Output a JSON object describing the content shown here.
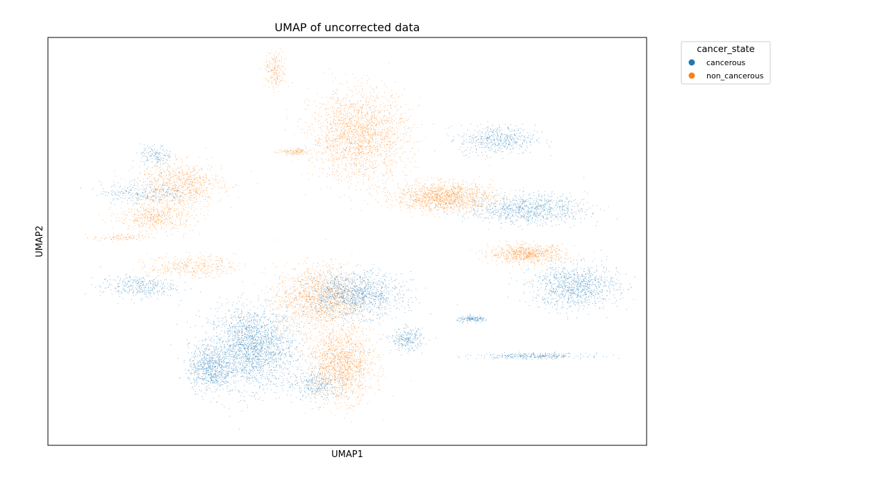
{
  "chart_data": {
    "type": "scatter",
    "title": "UMAP of uncorrected data",
    "xlabel": "UMAP1",
    "ylabel": "UMAP2",
    "xlim": [
      0,
      100
    ],
    "ylim": [
      0,
      100
    ],
    "grid": false,
    "ticks_visible": false,
    "legend": {
      "title": "cancer_state",
      "placement": "outside-top-right"
    },
    "series": [
      {
        "name": "cancerous",
        "color": "#1f77b4",
        "clusters": [
          {
            "cx": 34,
            "cy": 24,
            "rx": 8,
            "ry": 11,
            "n": 2200
          },
          {
            "cx": 27,
            "cy": 19,
            "rx": 4,
            "ry": 6,
            "n": 700
          },
          {
            "cx": 51,
            "cy": 37,
            "rx": 9,
            "ry": 6,
            "n": 1300
          },
          {
            "cx": 45,
            "cy": 15,
            "rx": 6,
            "ry": 4,
            "n": 350
          },
          {
            "cx": 60,
            "cy": 26,
            "rx": 3,
            "ry": 3,
            "n": 250
          },
          {
            "cx": 88,
            "cy": 39,
            "rx": 8,
            "ry": 6,
            "n": 1000
          },
          {
            "cx": 80,
            "cy": 58,
            "rx": 11,
            "ry": 4,
            "n": 900
          },
          {
            "cx": 75,
            "cy": 75,
            "rx": 7,
            "ry": 4,
            "n": 500
          },
          {
            "cx": 15,
            "cy": 39,
            "rx": 7,
            "ry": 3,
            "n": 350
          },
          {
            "cx": 16,
            "cy": 62,
            "rx": 8,
            "ry": 3,
            "n": 300
          },
          {
            "cx": 18,
            "cy": 71,
            "rx": 3,
            "ry": 3,
            "n": 150
          },
          {
            "cx": 71,
            "cy": 31,
            "rx": 3,
            "ry": 0.8,
            "n": 150
          },
          {
            "cx": 81,
            "cy": 22,
            "rx": 10,
            "ry": 0.8,
            "n": 300
          }
        ]
      },
      {
        "name": "non_cancerous",
        "color": "#ff7f0e",
        "clusters": [
          {
            "cx": 52,
            "cy": 76,
            "rx": 9,
            "ry": 12,
            "n": 2000
          },
          {
            "cx": 66,
            "cy": 61,
            "rx": 9,
            "ry": 4,
            "n": 1300
          },
          {
            "cx": 45,
            "cy": 36,
            "rx": 8,
            "ry": 9,
            "n": 1300
          },
          {
            "cx": 49,
            "cy": 20,
            "rx": 6,
            "ry": 10,
            "n": 1500
          },
          {
            "cx": 80,
            "cy": 47,
            "rx": 7,
            "ry": 2.5,
            "n": 700
          },
          {
            "cx": 22,
            "cy": 64,
            "rx": 8,
            "ry": 6,
            "n": 800
          },
          {
            "cx": 18,
            "cy": 56,
            "rx": 7,
            "ry": 4,
            "n": 500
          },
          {
            "cx": 24,
            "cy": 44,
            "rx": 8,
            "ry": 3,
            "n": 350
          },
          {
            "cx": 38,
            "cy": 92,
            "rx": 2,
            "ry": 5,
            "n": 200
          },
          {
            "cx": 41,
            "cy": 72,
            "rx": 3,
            "ry": 1,
            "n": 120
          },
          {
            "cx": 12,
            "cy": 51,
            "rx": 5,
            "ry": 1,
            "n": 100
          }
        ]
      }
    ]
  }
}
